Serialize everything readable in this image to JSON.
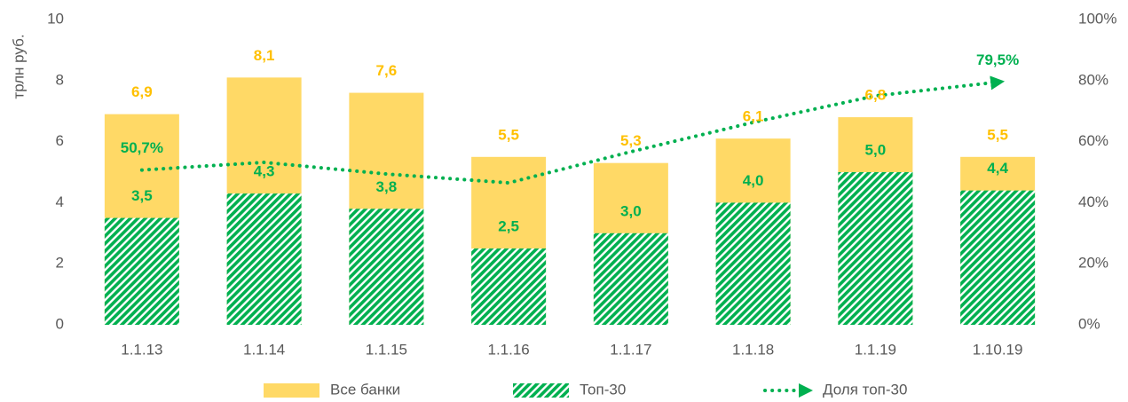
{
  "chart_data": {
    "type": "bar",
    "categories": [
      "1.1.13",
      "1.1.14",
      "1.1.15",
      "1.1.16",
      "1.1.17",
      "1.1.18",
      "1.1.19",
      "1.10.19"
    ],
    "series": [
      {
        "name": "Все банки",
        "type": "bar",
        "color": "#FFD966",
        "label_color": "#FFC000",
        "values": [
          6.9,
          8.1,
          7.6,
          5.5,
          5.3,
          6.1,
          6.8,
          5.5
        ],
        "value_labels": [
          "6,9",
          "8,1",
          "7,6",
          "5,5",
          "5,3",
          "6,1",
          "6,8",
          "5,5"
        ]
      },
      {
        "name": "Топ-30",
        "type": "bar",
        "color": "#00B050",
        "pattern": "hatch",
        "label_color": "#00B050",
        "values": [
          3.5,
          4.3,
          3.8,
          2.5,
          3.0,
          4.0,
          5.0,
          4.4
        ],
        "value_labels": [
          "3,5",
          "4,3",
          "3,8",
          "2,5",
          "3,0",
          "4,0",
          "5,0",
          "4,4"
        ]
      },
      {
        "name": "Доля топ-30",
        "type": "line",
        "axis": "y2",
        "color": "#00B050",
        "label_color": "#00B050",
        "values": [
          50.7,
          53.2,
          49.4,
          46.5,
          56.7,
          66.3,
          75.0,
          79.5
        ],
        "value_labels": [
          "50,7%",
          null,
          null,
          null,
          null,
          null,
          null,
          "79,5%"
        ]
      }
    ],
    "y_label": "трлн руб.",
    "ylim": [
      0,
      10
    ],
    "yticks": [
      0,
      2,
      4,
      6,
      8,
      10
    ],
    "y2lim": [
      0,
      100
    ],
    "y2ticks": [
      {
        "value": 0,
        "label": "0%"
      },
      {
        "value": 20,
        "label": "20%"
      },
      {
        "value": 40,
        "label": "40%"
      },
      {
        "value": 60,
        "label": "60%"
      },
      {
        "value": 80,
        "label": "80%"
      },
      {
        "value": 100,
        "label": "100%"
      }
    ],
    "legend": "bottom"
  }
}
